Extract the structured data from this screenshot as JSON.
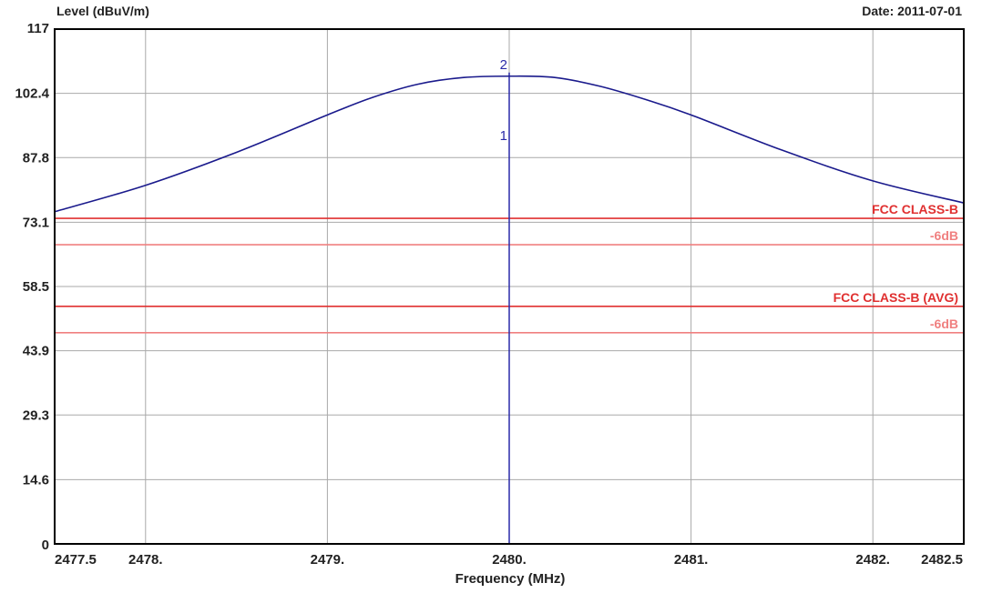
{
  "chart_data": {
    "type": "line",
    "title": "",
    "ylabel": "Level (dBuV/m)",
    "xlabel": "Frequency (MHz)",
    "date_text": "Date: 2011-07-01",
    "xlim": [
      2477.5,
      2482.5
    ],
    "ylim": [
      0,
      117
    ],
    "grid": true,
    "x_ticks": [
      2477.5,
      2478,
      2479,
      2480,
      2481,
      2482,
      2482.5
    ],
    "x_tick_labels": [
      "2477.5",
      "2478.",
      "2479.",
      "2480.",
      "2481.",
      "2482.",
      "2482.5"
    ],
    "y_ticks": [
      0,
      14.6,
      29.3,
      43.9,
      58.5,
      73.1,
      87.8,
      102.4,
      117
    ],
    "y_tick_labels": [
      "0",
      "14.6",
      "29.3",
      "43.9",
      "58.5",
      "73.1",
      "87.8",
      "102.4",
      "117"
    ],
    "series": [
      {
        "color": "#1a1a8c",
        "x": [
          2477.5,
          2478.0,
          2478.5,
          2479.0,
          2479.25,
          2479.5,
          2479.75,
          2480.0,
          2480.25,
          2480.5,
          2480.75,
          2481.0,
          2481.5,
          2482.0,
          2482.5
        ],
        "y": [
          75.5,
          81.5,
          89.0,
          97.5,
          101.5,
          104.5,
          106.0,
          106.3,
          106.0,
          104.0,
          101.0,
          97.5,
          89.5,
          82.5,
          77.5
        ]
      }
    ],
    "limit_lines": [
      {
        "label": "FCC CLASS-B",
        "value": 74.0,
        "color": "#e03030"
      },
      {
        "label": "-6dB",
        "value": 68.0,
        "color": "#f08080"
      },
      {
        "label": "FCC CLASS-B (AVG)",
        "value": 54.0,
        "color": "#e03030"
      },
      {
        "label": "-6dB",
        "value": 48.0,
        "color": "#f08080"
      }
    ],
    "markers": [
      {
        "label": "1",
        "x": 2480.0,
        "y": 92.0
      },
      {
        "label": "2",
        "x": 2480.0,
        "y": 106.3
      }
    ],
    "marker_line": {
      "x": 2480.0,
      "color": "#2a2aa8"
    }
  }
}
